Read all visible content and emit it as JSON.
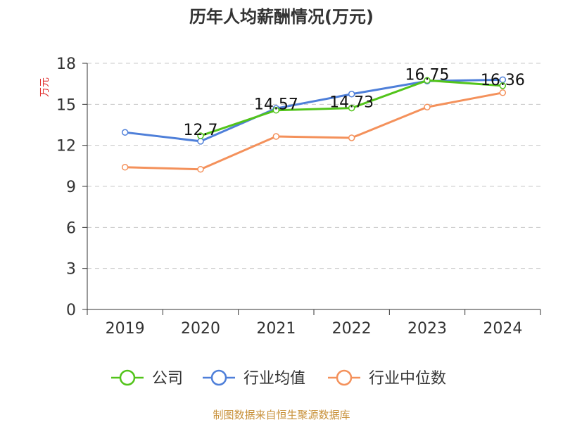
{
  "chart_data": {
    "type": "line",
    "title": "历年人均薪酬情况(万元)",
    "ylabel": "万元",
    "xlabel": "",
    "categories": [
      "2019",
      "2020",
      "2021",
      "2022",
      "2023",
      "2024"
    ],
    "ylim": [
      0,
      18
    ],
    "yticks": [
      0,
      3,
      6,
      9,
      12,
      15,
      18
    ],
    "grid": true,
    "legend_position": "bottom",
    "series": [
      {
        "name": "公司",
        "color": "#52c41a",
        "values": [
          null,
          12.7,
          14.57,
          14.73,
          16.75,
          16.36
        ],
        "labels": [
          "",
          "12.7",
          "14.57",
          "14.73",
          "16.75",
          "16.36"
        ]
      },
      {
        "name": "行业均值",
        "color": "#4e7fd9",
        "values": [
          12.95,
          12.3,
          14.7,
          15.75,
          16.7,
          16.8
        ]
      },
      {
        "name": "行业中位数",
        "color": "#f4915b",
        "values": [
          10.4,
          10.25,
          12.65,
          12.55,
          14.8,
          15.85
        ]
      }
    ],
    "ylabel_color": "#e03030",
    "source": "制图数据来自恒生聚源数据库",
    "source_color": "#c8913a"
  }
}
